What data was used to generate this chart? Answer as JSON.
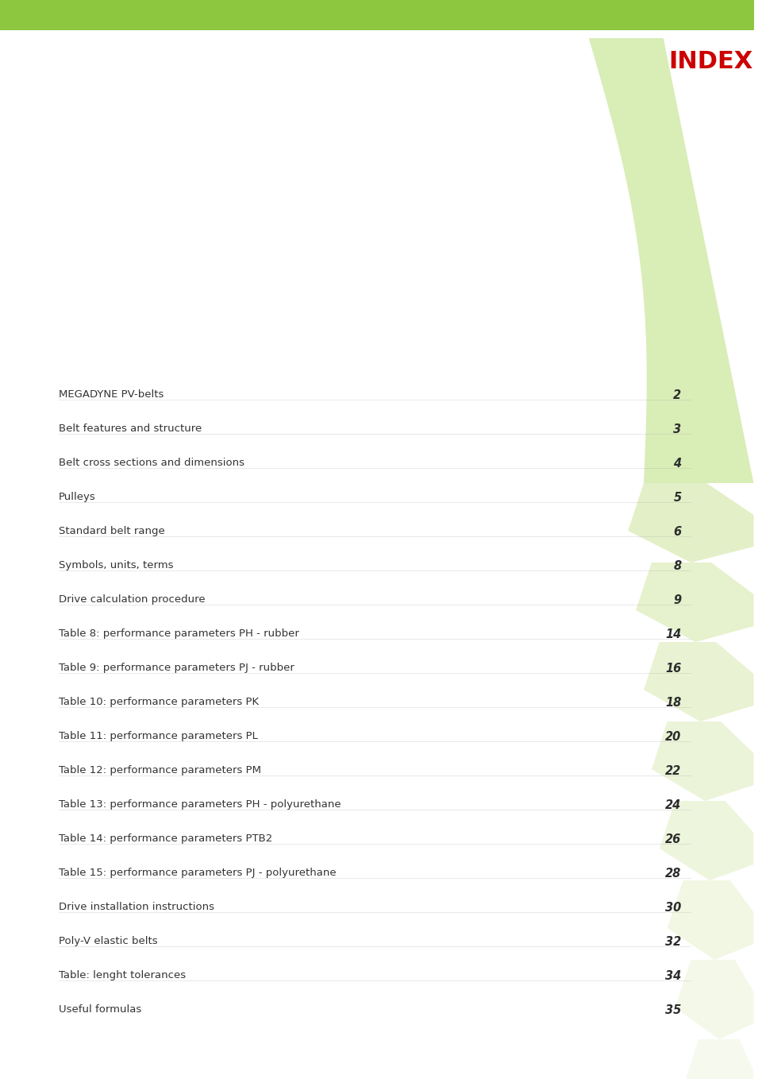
{
  "title": "INDEX",
  "title_color": "#cc0000",
  "header_bar_color": "#8dc63f",
  "light_green": "#c8e6a0",
  "entries": [
    {
      "label": "MEGADYNE PV-belts",
      "page": "2"
    },
    {
      "label": "Belt features and structure",
      "page": "3"
    },
    {
      "label": "Belt cross sections and dimensions",
      "page": "4"
    },
    {
      "label": "Pulleys",
      "page": "5"
    },
    {
      "label": "Standard belt range",
      "page": "6"
    },
    {
      "label": "Symbols, units, terms",
      "page": "8"
    },
    {
      "label": "Drive calculation procedure",
      "page": "9"
    },
    {
      "label": "Table 8: performance parameters PH - rubber",
      "page": "14"
    },
    {
      "label": "Table 9: performance parameters PJ - rubber",
      "page": "16"
    },
    {
      "label": "Table 10: performance parameters PK",
      "page": "18"
    },
    {
      "label": "Table 11: performance parameters PL",
      "page": "20"
    },
    {
      "label": "Table 12: performance parameters PM",
      "page": "22"
    },
    {
      "label": "Table 13: performance parameters PH - polyurethane",
      "page": "24"
    },
    {
      "label": "Table 14: performance parameters PTB2",
      "page": "26"
    },
    {
      "label": "Table 15: performance parameters PJ - polyurethane",
      "page": "28"
    },
    {
      "label": "Drive installation instructions",
      "page": "30"
    },
    {
      "label": "Poly-V elastic belts",
      "page": "32"
    },
    {
      "label": "Table: lenght tolerances",
      "page": "34"
    },
    {
      "label": "Useful formulas",
      "page": "35"
    }
  ],
  "bg_color": "#ffffff",
  "text_color": "#333333",
  "page_num_color": "#2d2d2d",
  "label_fontsize": 9.5,
  "page_fontsize": 10.5,
  "index_fontsize": 22
}
